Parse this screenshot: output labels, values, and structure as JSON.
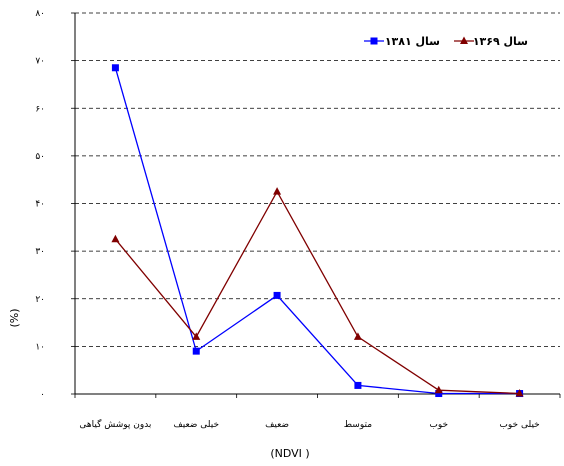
{
  "chart_data": {
    "type": "line",
    "categories": [
      "بدون پوشش گیاهی",
      "خیلی ضعیف",
      "ضعیف",
      "متوسط",
      "خوب",
      "خیلی خوب"
    ],
    "series": [
      {
        "name": "سال ۱۳۸۱",
        "values": [
          68.5,
          9.0,
          20.7,
          1.8,
          0.1,
          0.1
        ],
        "color": "#0000FF",
        "marker": "square"
      },
      {
        "name": "سال ۱۳۶۹",
        "values": [
          32.5,
          12.0,
          42.5,
          12.0,
          0.8,
          0.1
        ],
        "color": "#800000",
        "marker": "triangle"
      }
    ],
    "ylim": [
      0,
      80
    ],
    "yticks": [
      0,
      10,
      20,
      30,
      40,
      50,
      60,
      70,
      80
    ],
    "ytick_labels": [
      "۰",
      "۱۰",
      "۲۰",
      "۳۰",
      "۴۰",
      "۵۰",
      "۶۰",
      "۷۰",
      "۸۰"
    ],
    "ylabel": "(%)",
    "xlabel": "(NDVI          )",
    "grid": "horizontal-dashed",
    "legend_position": "top-right"
  }
}
